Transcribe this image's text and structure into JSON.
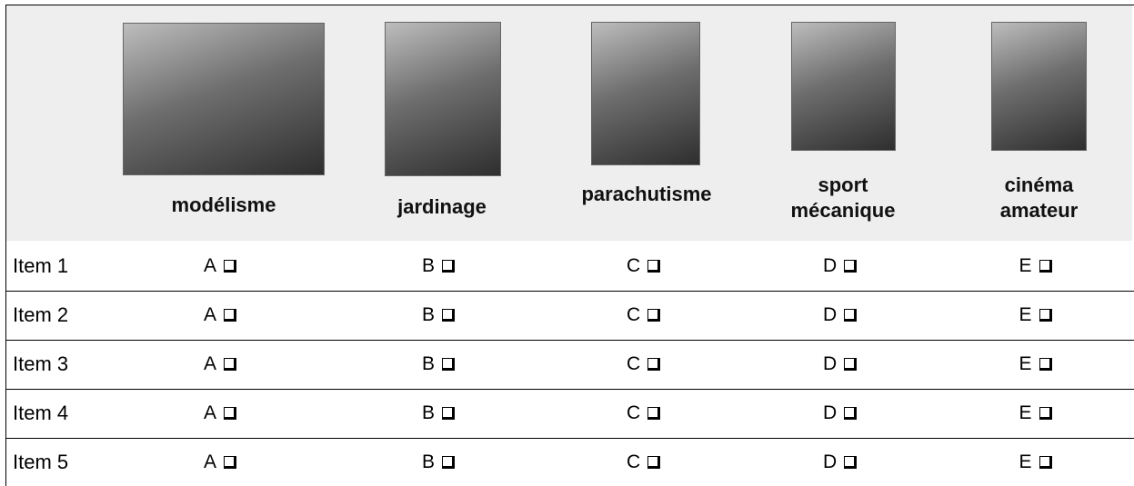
{
  "table": {
    "columns": [
      "modélisme",
      "jardinage",
      "parachutisme",
      "sport mécanique",
      "cinéma amateur"
    ],
    "rows": [
      {
        "label": "Item 1",
        "options": [
          "A",
          "B",
          "C",
          "D",
          "E"
        ]
      },
      {
        "label": "Item 2",
        "options": [
          "A",
          "B",
          "C",
          "D",
          "E"
        ]
      },
      {
        "label": "Item 3",
        "options": [
          "A",
          "B",
          "C",
          "D",
          "E"
        ]
      },
      {
        "label": "Item 4",
        "options": [
          "A",
          "B",
          "C",
          "D",
          "E"
        ]
      },
      {
        "label": "Item 5",
        "options": [
          "A",
          "B",
          "C",
          "D",
          "E"
        ]
      }
    ]
  }
}
